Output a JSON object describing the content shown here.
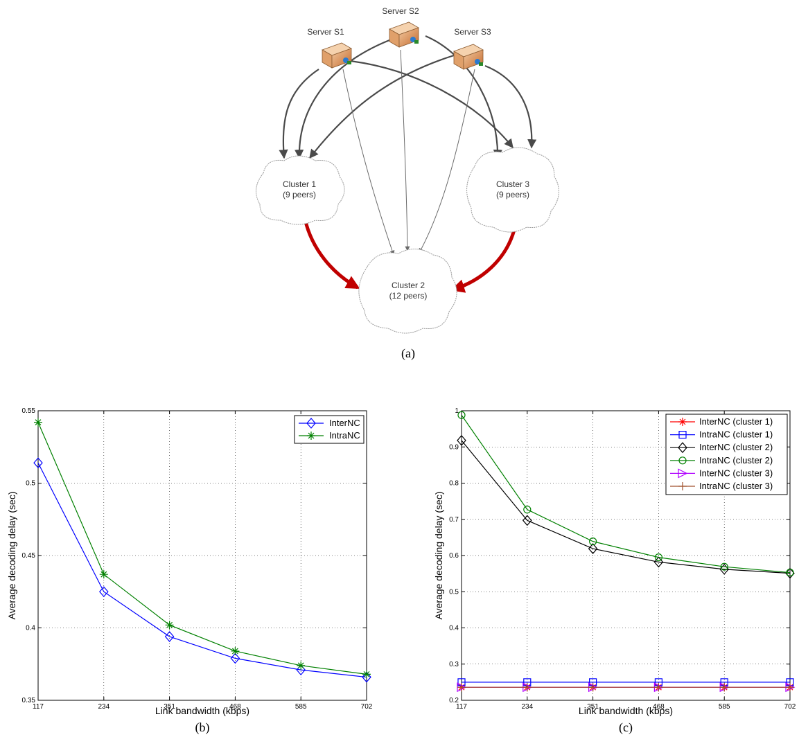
{
  "diagram": {
    "caption": "(a)",
    "servers": [
      {
        "id": "s1",
        "label": "Server S1"
      },
      {
        "id": "s2",
        "label": "Server S2"
      },
      {
        "id": "s3",
        "label": "Server S3"
      }
    ],
    "clusters": [
      {
        "id": "c1",
        "name": "Cluster 1",
        "peers": "(9 peers)"
      },
      {
        "id": "c2",
        "name": "Cluster 2",
        "peers": "(12 peers)"
      },
      {
        "id": "c3",
        "name": "Cluster 3",
        "peers": "(9 peers)"
      }
    ],
    "colors": {
      "link": "#4a4a4a",
      "thin_link": "#6a6a6a",
      "inter_cluster": "#c00000",
      "server": "#d98a4a"
    }
  },
  "chart_data": [
    {
      "id": "b",
      "type": "line",
      "caption": "(b)",
      "xlabel": "Link bandwidth (kbps)",
      "ylabel": "Average decoding delay (sec)",
      "x": [
        117,
        234,
        351,
        468,
        585,
        702
      ],
      "xticks": [
        "117",
        "234",
        "351",
        "468",
        "585",
        "702"
      ],
      "ylim": [
        0.35,
        0.55
      ],
      "yticks": [
        "0.35",
        "0.4",
        "0.45",
        "0.5",
        "0.55"
      ],
      "ytick_values": [
        0.35,
        0.4,
        0.45,
        0.5,
        0.55
      ],
      "grid": true,
      "legend_position": "top-right",
      "series": [
        {
          "name": "InterNC",
          "color": "#0000ff",
          "marker": "diamond",
          "values": [
            0.514,
            0.425,
            0.394,
            0.379,
            0.371,
            0.366
          ]
        },
        {
          "name": "IntraNC",
          "color": "#008000",
          "marker": "star",
          "values": [
            0.542,
            0.437,
            0.402,
            0.384,
            0.374,
            0.368
          ]
        }
      ]
    },
    {
      "id": "c",
      "type": "line",
      "caption": "(c)",
      "xlabel": "Link bandwidth (kbps)",
      "ylabel": "Average decoding delay (sec)",
      "x": [
        117,
        234,
        351,
        468,
        585,
        702
      ],
      "xticks": [
        "117",
        "234",
        "351",
        "468",
        "585",
        "702"
      ],
      "ylim": [
        0.2,
        1.0
      ],
      "yticks": [
        "0.2",
        "0.3",
        "0.4",
        "0.5",
        "0.6",
        "0.7",
        "0.8",
        "0.9",
        "1"
      ],
      "ytick_values": [
        0.2,
        0.3,
        0.4,
        0.5,
        0.6,
        0.7,
        0.8,
        0.9,
        1.0
      ],
      "grid": true,
      "legend_position": "top-right",
      "series": [
        {
          "name": "InterNC (cluster 1)",
          "color": "#ff0000",
          "marker": "star",
          "values": [
            0.236,
            0.236,
            0.236,
            0.236,
            0.236,
            0.236
          ]
        },
        {
          "name": "IntraNC (cluster 1)",
          "color": "#0000ff",
          "marker": "square",
          "values": [
            0.25,
            0.25,
            0.25,
            0.25,
            0.25,
            0.25
          ]
        },
        {
          "name": "InterNC (cluster 2)",
          "color": "#000000",
          "marker": "diamond",
          "values": [
            0.918,
            0.697,
            0.619,
            0.582,
            0.562,
            0.551
          ]
        },
        {
          "name": "IntraNC (cluster 2)",
          "color": "#008000",
          "marker": "circle",
          "values": [
            0.988,
            0.727,
            0.639,
            0.595,
            0.569,
            0.553
          ]
        },
        {
          "name": "InterNC (cluster 3)",
          "color": "#b000ff",
          "marker": "triangle-right",
          "values": [
            0.236,
            0.236,
            0.236,
            0.236,
            0.236,
            0.236
          ]
        },
        {
          "name": "IntraNC (cluster 3)",
          "color": "#a0522d",
          "marker": "plus",
          "values": [
            0.236,
            0.236,
            0.236,
            0.236,
            0.236,
            0.236
          ]
        }
      ]
    }
  ]
}
